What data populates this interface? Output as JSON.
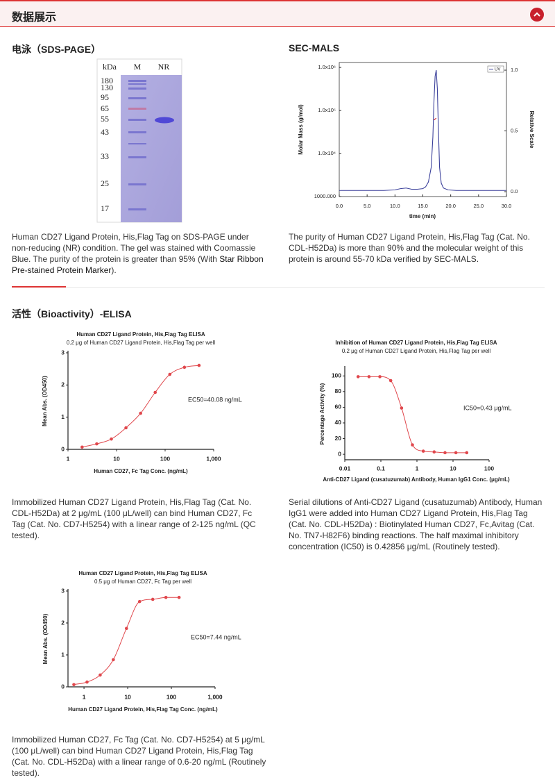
{
  "header": {
    "title": "数据展示"
  },
  "sds_page": {
    "heading": "电泳（SDS-PAGE）",
    "gel": {
      "unit_label": "kDa",
      "lanes": [
        "M",
        "NR"
      ],
      "markers": [
        180,
        130,
        95,
        65,
        55,
        43,
        33,
        25,
        17
      ]
    },
    "caption": {
      "text": "Human CD27 Ligand Protein, His,Flag Tag on SDS-PAGE under non-reducing (NR) condition. The gel was stained with Coomassie Blue. The purity of the protein is greater than 95% (With ",
      "link": "Star Ribbon Pre-stained Protein Marker",
      "end": ")."
    }
  },
  "sec_mals": {
    "heading": "SEC-MALS",
    "caption": "The purity of Human CD27 Ligand Protein, His,Flag Tag (Cat. No. CDL-H52Da) is more than 90% and the molecular weight of this protein is around 55-70 kDa verified by SEC-MALS."
  },
  "bioactivity": {
    "heading": "活性（Bioactivity）-ELISA",
    "captions": [
      "Immobilized Human CD27 Ligand Protein, His,Flag Tag (Cat. No. CDL-H52Da) at 2 μg/mL (100 μL/well) can bind Human CD27, Fc Tag (Cat. No. CD7-H5254) with a linear range of 2-125 ng/mL (QC tested).",
      "Serial dilutions of Anti-CD27 Ligand (cusatuzumab) Antibody, Human IgG1 were added into Human CD27 Ligand Protein, His,Flag Tag (Cat. No. CDL-H52Da) : Biotinylated Human CD27, Fc,Avitag (Cat. No. TN7-H82F6) binding reactions. The half maximal inhibitory concentration (IC50) is 0.42856 μg/mL (Routinely tested).",
      "Immobilized Human CD27, Fc Tag (Cat. No. CD7-H5254) at 5 μg/mL (100 μL/well) can bind Human CD27 Ligand Protein, His,Flag Tag (Cat. No. CDL-H52Da) with a linear range of 0.6-20 ng/mL (Routinely tested)."
    ]
  },
  "chart_data": [
    {
      "type": "line",
      "xlabel": "time (min)",
      "ylabel": "Molar Mass (g/mol)",
      "y2label": "Relative Scale",
      "xlim": [
        0,
        30
      ],
      "xticks": [
        {
          "value": 0,
          "label": "0.0"
        },
        {
          "value": 5,
          "label": "5.0"
        },
        {
          "value": 10,
          "label": "10.0"
        },
        {
          "value": 15,
          "label": "15.0"
        },
        {
          "value": 20,
          "label": "20.0"
        },
        {
          "value": 25,
          "label": "25.0"
        },
        {
          "value": 30,
          "label": "30.0"
        }
      ],
      "ylog": true,
      "ylim": [
        1000,
        1300000
      ],
      "yticks": [
        {
          "value": 1000,
          "label": "1000.000"
        },
        {
          "value": 10000,
          "label": "1.0x10⁴"
        },
        {
          "value": 100000,
          "label": "1.0x10⁵"
        },
        {
          "value": 1000000,
          "label": "1.0x10⁶"
        }
      ],
      "y2lim": [
        -0.04,
        1.063
      ],
      "y2ticks": [
        {
          "value": 0,
          "label": "0.0"
        },
        0.5,
        {
          "value": 1,
          "label": "1.0"
        }
      ],
      "frame": true,
      "legend": "upper right",
      "series": [
        {
          "name": "UV",
          "color": "#3a3f9a",
          "axis": "y2",
          "x": [
            0,
            2,
            5,
            8,
            10,
            11,
            12,
            13,
            14,
            15,
            15.5,
            16,
            16.5,
            16.8,
            17,
            17.2,
            17.4,
            17.6,
            17.8,
            18,
            18.3,
            18.7,
            19.5,
            21,
            25,
            30
          ],
          "values": [
            0.01,
            0.01,
            0.01,
            0.01,
            0.015,
            0.025,
            0.03,
            0.02,
            0.02,
            0.025,
            0.04,
            0.08,
            0.2,
            0.45,
            0.75,
            0.95,
            1.0,
            0.85,
            0.5,
            0.2,
            0.07,
            0.03,
            0.015,
            0.01,
            0.01,
            0.01
          ]
        },
        {
          "color": "#d0202a",
          "x": [
            17.0,
            17.2,
            17.4
          ],
          "values": [
            60000,
            63000,
            66000
          ]
        }
      ]
    },
    {
      "type": "line",
      "title": "Human CD27 Ligand Protein, His,Flag Tag ELISA",
      "subtitle": "0.2 μg of Human CD27 Ligand Protein, His,Flag Tag per well",
      "xlabel": "Human CD27, Fc Tag Conc. (ng/mL)",
      "ylabel": "Mean Abs. (OD450)",
      "annotation": "EC50=40.08 ng/mL",
      "xlog": true,
      "xlim": [
        1,
        1000
      ],
      "xticks": [
        1,
        10,
        100,
        {
          "value": 1000,
          "label": "1,000"
        }
      ],
      "ylim": [
        0,
        3
      ],
      "yticks": [
        0,
        1,
        2,
        3
      ],
      "markers": true,
      "smooth": true,
      "x": [
        1.953,
        3.906,
        7.813,
        15.63,
        31.25,
        62.5,
        125,
        250,
        500
      ],
      "series": [
        {
          "color": "#e0474c",
          "values": [
            0.07,
            0.17,
            0.32,
            0.67,
            1.12,
            1.77,
            2.33,
            2.55,
            2.61
          ]
        }
      ]
    },
    {
      "type": "line",
      "title": "Inhibition of Human CD27 Ligand Protein, His,Flag Tag ELISA",
      "subtitle": "0.2 μg of Human CD27 Ligand Protein, His,Flag Tag per well",
      "xlabel": "Anti-CD27 Ligand (cusatuzumab) Antibody, Human IgG1 Conc. (μg/mL)",
      "ylabel": "Percentage Activity (%)",
      "annotation": "IC50=0.43 μg/mL",
      "xlog": true,
      "xlim": [
        0.01,
        100
      ],
      "xticks": [
        0.01,
        0.1,
        1,
        10,
        100
      ],
      "ylim": [
        -7,
        110
      ],
      "yticks": [
        0,
        20,
        40,
        60,
        80,
        100
      ],
      "markers": true,
      "smooth": true,
      "x": [
        0.0234,
        0.0469,
        0.0938,
        0.1875,
        0.375,
        0.75,
        1.5,
        3,
        6,
        12,
        24
      ],
      "series": [
        {
          "color": "#e0474c",
          "values": [
            99,
            99,
            99,
            94,
            59,
            12,
            4,
            3,
            2,
            2,
            2
          ]
        }
      ]
    },
    {
      "type": "line",
      "title": "Human CD27 Ligand Protein, His,Flag Tag ELISA",
      "subtitle": "0.5 μg of Human CD27, Fc Tag per well",
      "xlabel": "Human CD27 Ligand Protein, His,Flag Tag Conc. (ng/mL)",
      "ylabel": "Mean Abs. (OD450)",
      "annotation": "EC50=7.44 ng/mL",
      "xlog": true,
      "xlim": [
        0.43,
        1000
      ],
      "xticks": [
        1,
        10,
        100,
        {
          "value": 1000,
          "label": "1,000"
        }
      ],
      "ylim": [
        0,
        3
      ],
      "yticks": [
        0,
        1,
        2,
        3
      ],
      "markers": true,
      "smooth": true,
      "x": [
        0.586,
        1.172,
        2.344,
        4.688,
        9.375,
        18.75,
        37.5,
        75,
        150
      ],
      "series": [
        {
          "color": "#e0474c",
          "values": [
            0.07,
            0.15,
            0.37,
            0.85,
            1.83,
            2.67,
            2.74,
            2.8,
            2.8
          ]
        }
      ]
    }
  ]
}
